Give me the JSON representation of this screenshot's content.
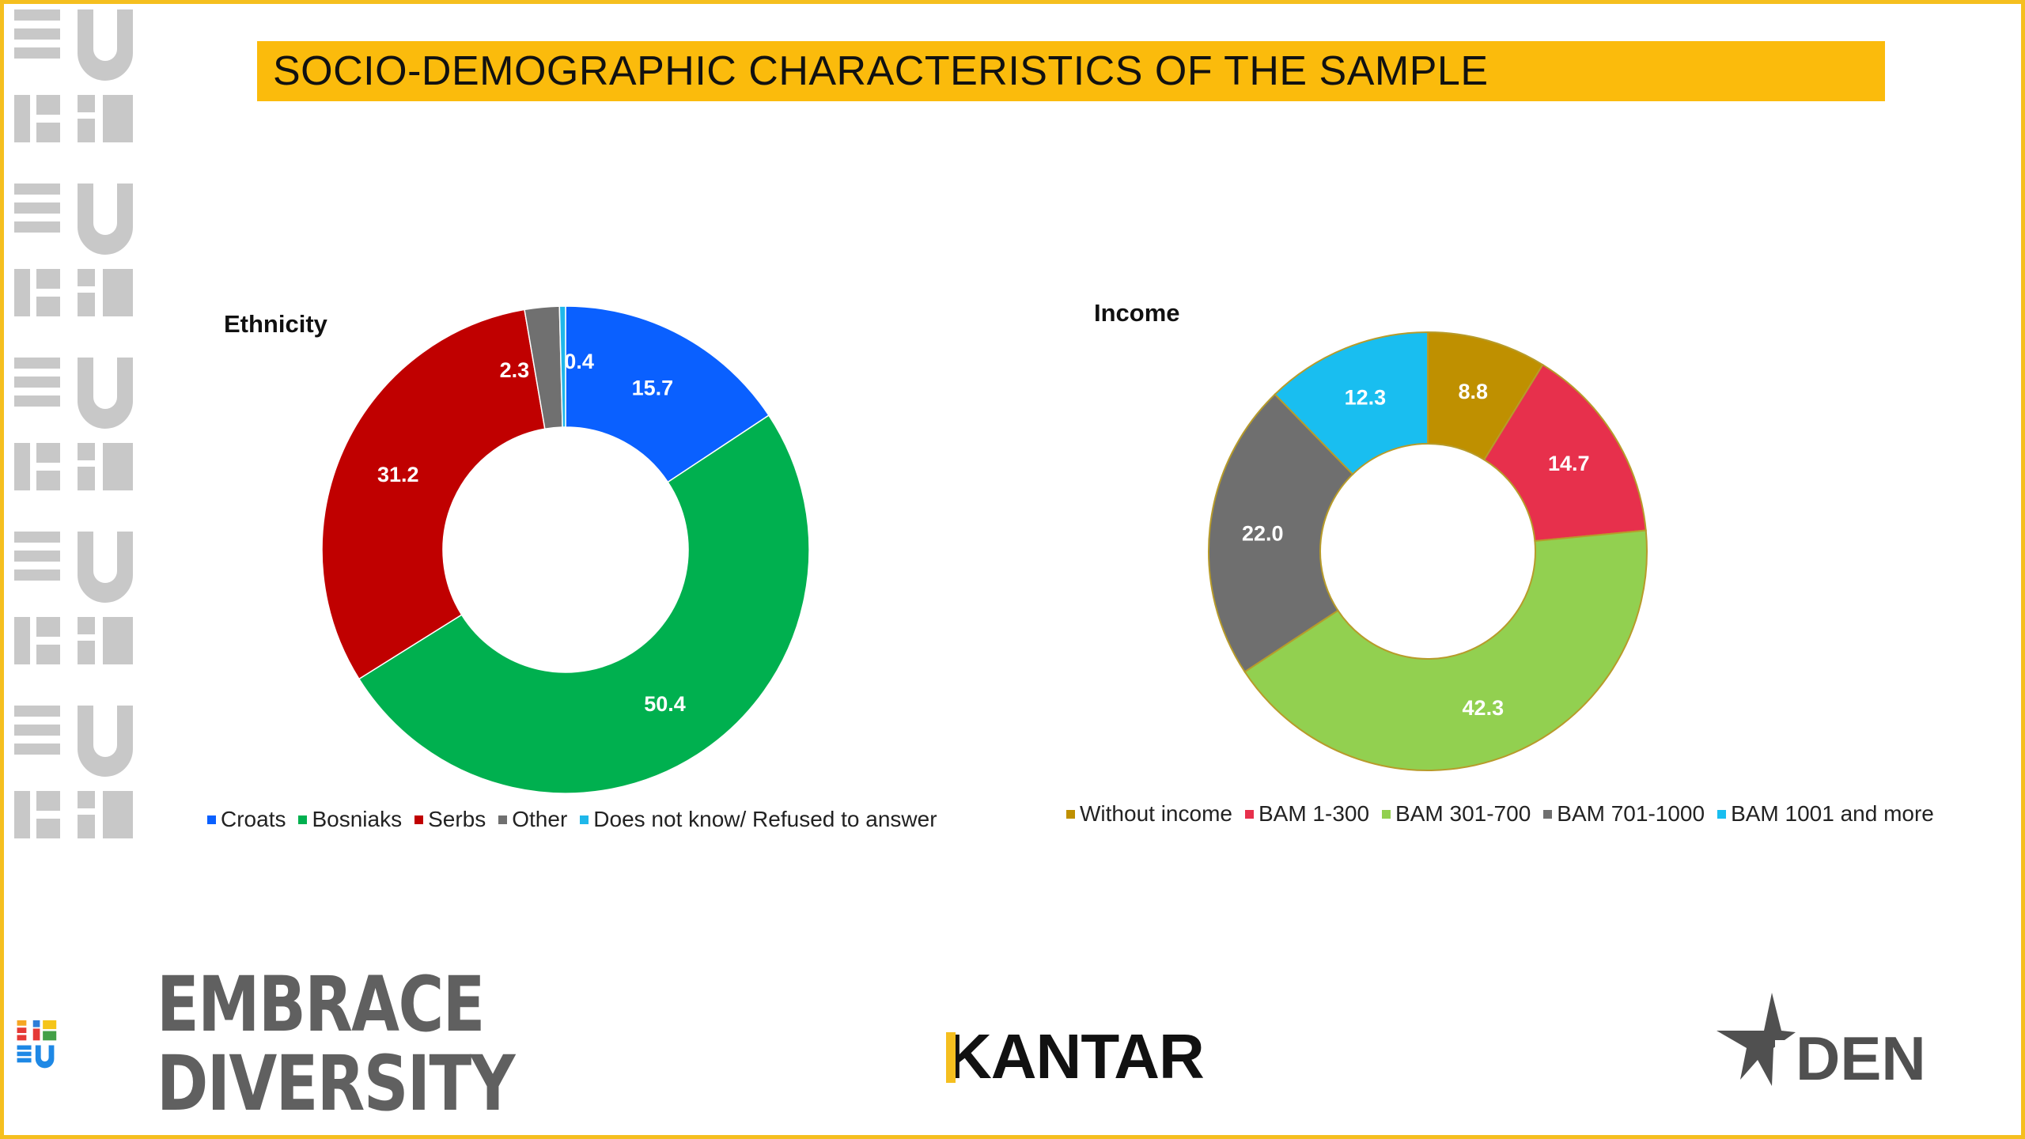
{
  "header": {
    "title": "SOCIO-DEMOGRAPHIC CHARACTERISTICS OF THE SAMPLE"
  },
  "chart_data": [
    {
      "type": "pie",
      "title": "Ethnicity",
      "categories": [
        "Croats",
        "Bosniaks",
        "Serbs",
        "Other",
        "Does not know/ Refused to answer"
      ],
      "values": [
        15.7,
        50.4,
        31.2,
        2.3,
        0.4
      ],
      "labels": [
        "15.7",
        "50.4",
        "31.2",
        "2.3",
        "0.4"
      ],
      "colors": [
        "#0a60ff",
        "#00b04f",
        "#c00000",
        "#707070",
        "#1fb7ea"
      ],
      "legend_position": "bottom"
    },
    {
      "type": "pie",
      "title": "Income",
      "categories": [
        "Without income",
        "BAM 1-300",
        "BAM 301-700",
        "BAM 701-1000",
        "BAM 1001 and more"
      ],
      "values": [
        8.8,
        14.7,
        42.3,
        22.0,
        12.3
      ],
      "labels": [
        "8.8",
        "14.7",
        "42.3",
        "22.0",
        "12.3"
      ],
      "colors": [
        "#bf9000",
        "#e7304c",
        "#92d050",
        "#6f6f6f",
        "#19bef0"
      ],
      "legend_position": "bottom"
    }
  ],
  "logos": {
    "embrace_line1": "EMBRACE",
    "embrace_line2": "DIVERSITY",
    "kantar": "KANTAR",
    "den": "DEN"
  }
}
